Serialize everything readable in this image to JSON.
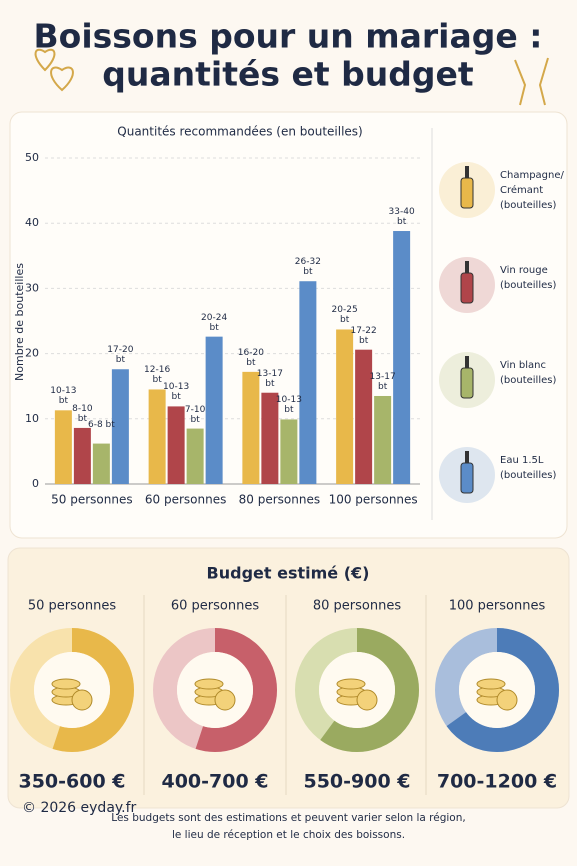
{
  "header": {
    "title_line1": "Boissons pour un mariage :",
    "title_line2": "quantités et budget"
  },
  "chart_data": {
    "type": "bar",
    "title": "Quantités recommandées (en bouteilles)",
    "y_label": "Nombre de bouteilles",
    "categories": [
      "50 personnes",
      "60 personnes",
      "80 personnes",
      "100 personnes"
    ],
    "ylim": [
      0,
      50
    ],
    "yticks": [
      0,
      10,
      20,
      30,
      40,
      50
    ],
    "grid": true,
    "series": [
      {
        "name": "Champagne/ Crémant (bouteilles)",
        "color": "#e8b84a",
        "values": [
          11.3,
          14.5,
          17.2,
          23.7
        ],
        "labels": [
          "10-13 bt",
          "12-16 bt",
          "16-20 bt",
          "20-25 bt"
        ]
      },
      {
        "name": "Vin rouge (bouteilles)",
        "color": "#b0454a",
        "values": [
          8.6,
          11.9,
          14.0,
          20.6
        ],
        "labels": [
          "8-10 bt",
          "10-13 bt",
          "13-17 bt",
          "17-22 bt"
        ]
      },
      {
        "name": "Vin blanc (bouteilles)",
        "color": "#a7b56a",
        "values": [
          6.2,
          8.5,
          9.9,
          13.5
        ],
        "labels": [
          "6-8 bt",
          "7-10 bt",
          "10-13 bt",
          "13-17 bt"
        ]
      },
      {
        "name": "Eau 1.5L (bouteilles)",
        "color": "#5b8cc8",
        "values": [
          17.6,
          22.6,
          31.1,
          38.8
        ],
        "labels": [
          "17-20 bt",
          "20-24 bt",
          "26-32 bt",
          "33-40 bt"
        ]
      }
    ]
  },
  "budget": {
    "title": "Budget estimé (€)",
    "items": [
      {
        "group": "50 personnes",
        "range": "350-600 €",
        "share": 55,
        "color": "#e8b84a",
        "light": "#f8e2ac"
      },
      {
        "group": "60 personnes",
        "range": "400-700 €",
        "share": 55,
        "color": "#c7606a",
        "light": "#ecc6c6"
      },
      {
        "group": "80 personnes",
        "range": "550-900 €",
        "share": 60,
        "color": "#9aaa60",
        "light": "#d8deb0"
      },
      {
        "group": "100 personnes",
        "range": "700-1200 €",
        "share": 65,
        "color": "#4d7cb8",
        "light": "#a9bedc"
      }
    ]
  },
  "footer": {
    "copyright": "© 2026 eyday.fr",
    "note_line1": "Les budgets sont des estimations et peuvent varier selon la région,",
    "note_line2": "le lieu de réception et le choix des boissons."
  }
}
